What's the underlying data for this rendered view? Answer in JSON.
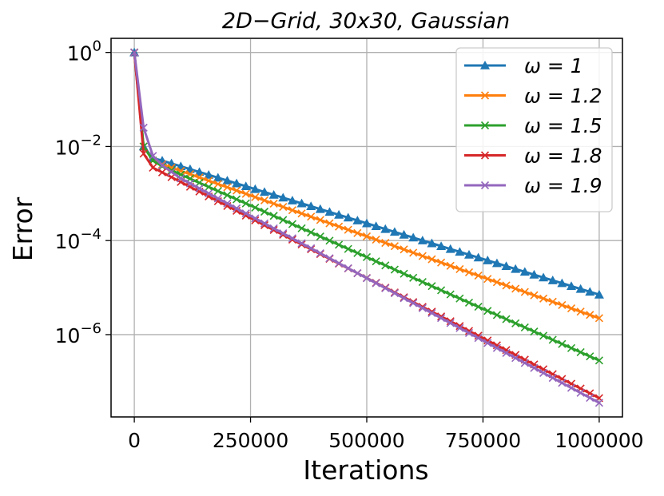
{
  "chart_data": {
    "type": "line",
    "title": "2D−Grid,    30x30,    Gaussian",
    "xlabel": "Iterations",
    "ylabel": "Error",
    "xlim": [
      -50000,
      1050000
    ],
    "ylim_log10": [
      -7.75,
      0.3
    ],
    "yscale": "log",
    "grid": true,
    "legend_position": "top-right",
    "x_ticks": [
      0,
      250000,
      500000,
      750000,
      1000000
    ],
    "x_tick_labels": [
      "0",
      "250000",
      "500000",
      "750000",
      "1000000"
    ],
    "y_ticks_log10": [
      0,
      -2,
      -4,
      -6
    ],
    "y_tick_labels": [
      {
        "base": "10",
        "exp": "0"
      },
      {
        "base": "10",
        "exp": "−2"
      },
      {
        "base": "10",
        "exp": "−4"
      },
      {
        "base": "10",
        "exp": "−6"
      }
    ],
    "series": [
      {
        "name": "ω = 1",
        "color": "#1f77b4",
        "marker": "triangle",
        "log10_points": [
          [
            0,
            0
          ],
          [
            20000,
            -2.0
          ],
          [
            40000,
            -2.25
          ],
          [
            60000,
            -2.3
          ],
          [
            1000000,
            -5.15
          ]
        ]
      },
      {
        "name": "ω = 1.2",
        "color": "#ff7f0e",
        "marker": "x",
        "log10_points": [
          [
            0,
            0
          ],
          [
            20000,
            -2.0
          ],
          [
            40000,
            -2.3
          ],
          [
            60000,
            -2.38
          ],
          [
            1000000,
            -5.65
          ]
        ]
      },
      {
        "name": "ω = 1.5",
        "color": "#2ca02c",
        "marker": "x",
        "log10_points": [
          [
            0,
            0
          ],
          [
            20000,
            -2.0
          ],
          [
            40000,
            -2.3
          ],
          [
            60000,
            -2.42
          ],
          [
            1000000,
            -6.55
          ]
        ]
      },
      {
        "name": "ω = 1.8",
        "color": "#d62728",
        "marker": "x",
        "log10_points": [
          [
            0,
            0
          ],
          [
            20000,
            -2.15
          ],
          [
            40000,
            -2.45
          ],
          [
            60000,
            -2.55
          ],
          [
            1000000,
            -7.35
          ]
        ]
      },
      {
        "name": "ω = 1.9",
        "color": "#9467bd",
        "marker": "x",
        "log10_points": [
          [
            0,
            0
          ],
          [
            20000,
            -1.6
          ],
          [
            40000,
            -2.2
          ],
          [
            60000,
            -2.4
          ],
          [
            100000,
            -2.68
          ],
          [
            1000000,
            -7.45
          ]
        ]
      }
    ]
  }
}
